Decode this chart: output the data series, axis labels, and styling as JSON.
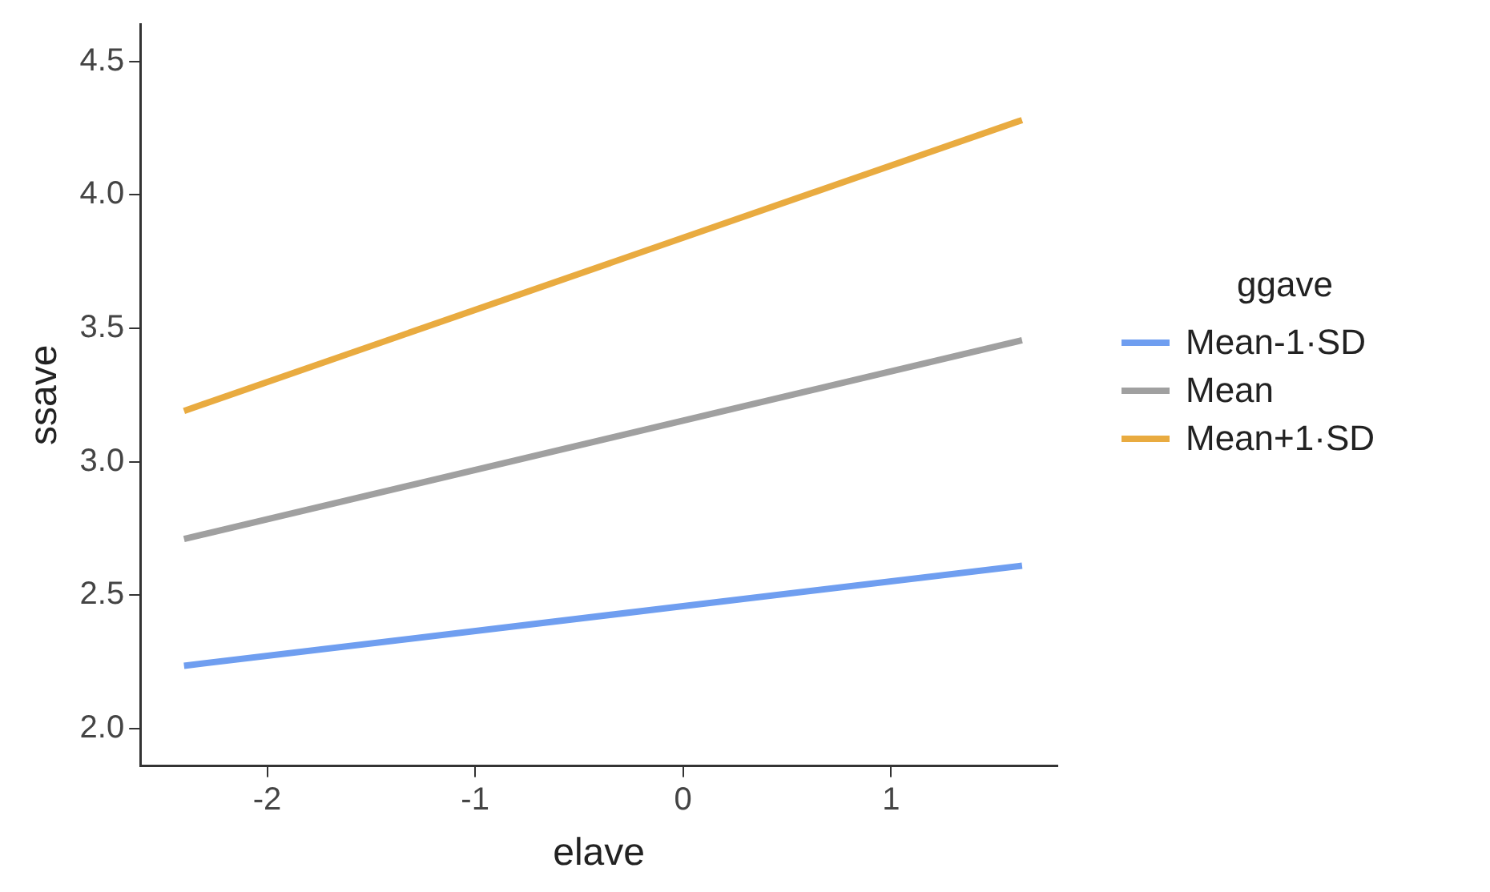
{
  "chart_data": {
    "type": "line",
    "xlabel": "elave",
    "ylabel": "ssave",
    "legend_title": "ggave",
    "legend": "right",
    "grid": false,
    "marker": "none",
    "line_style": "solid",
    "xlim": [
      -2.61,
      1.8
    ],
    "xticks": [
      -2,
      -1,
      0,
      1
    ],
    "ylim": [
      1.86,
      4.64
    ],
    "yticks": [
      {
        "value": 2,
        "label": "2.0"
      },
      {
        "value": 2.5,
        "label": "2.5"
      },
      {
        "value": 3,
        "label": "3.0"
      },
      {
        "value": 3.5,
        "label": "3.5"
      },
      {
        "value": 4,
        "label": "4.0"
      },
      {
        "value": 4.5,
        "label": "4.5"
      }
    ],
    "x": [
      -2.4,
      1.63
    ],
    "series": [
      {
        "name": "Mean-1·SD",
        "color": "#6f9ef0",
        "values": [
          2.235,
          2.61
        ]
      },
      {
        "name": "Mean",
        "color": "#a0a0a0",
        "values": [
          2.71,
          3.455
        ]
      },
      {
        "name": "Mean+1·SD",
        "color": "#e9ab40",
        "values": [
          3.19,
          4.28
        ]
      }
    ]
  }
}
